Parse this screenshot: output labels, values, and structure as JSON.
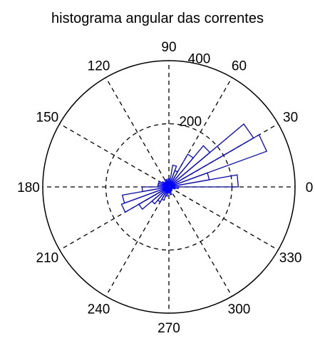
{
  "chart_data": {
    "type": "polar-histogram",
    "title": "histograma angular das correntes",
    "angular_ticks": [
      "0",
      "30",
      "60",
      "90",
      "120",
      "150",
      "180",
      "210",
      "240",
      "270",
      "300",
      "330"
    ],
    "angular_tick_values_deg": [
      0,
      30,
      60,
      90,
      120,
      150,
      180,
      210,
      240,
      270,
      300,
      330
    ],
    "radial_ticks": [
      "200",
      "400"
    ],
    "radial_tick_values": [
      200,
      400
    ],
    "rmax": 400,
    "bin_width_deg": 10,
    "series": [
      {
        "bins_center_deg": [
          5,
          15,
          25,
          35,
          45,
          55,
          65,
          75,
          85,
          95,
          105,
          115,
          125,
          135,
          145,
          155,
          165,
          175,
          185,
          195,
          205,
          215,
          225,
          235,
          245,
          255,
          265,
          275,
          285,
          295,
          305,
          315,
          325,
          335,
          345,
          355
        ],
        "counts": [
          220,
          130,
          330,
          310,
          170,
          120,
          55,
          70,
          25,
          25,
          20,
          25,
          15,
          20,
          25,
          35,
          35,
          35,
          85,
          150,
          160,
          110,
          70,
          55,
          45,
          30,
          20,
          15,
          25,
          15,
          15,
          12,
          10,
          12,
          20,
          30
        ]
      }
    ],
    "colors": {
      "series": "#0000ff",
      "axes": "#000000",
      "grid": "#000000"
    }
  }
}
